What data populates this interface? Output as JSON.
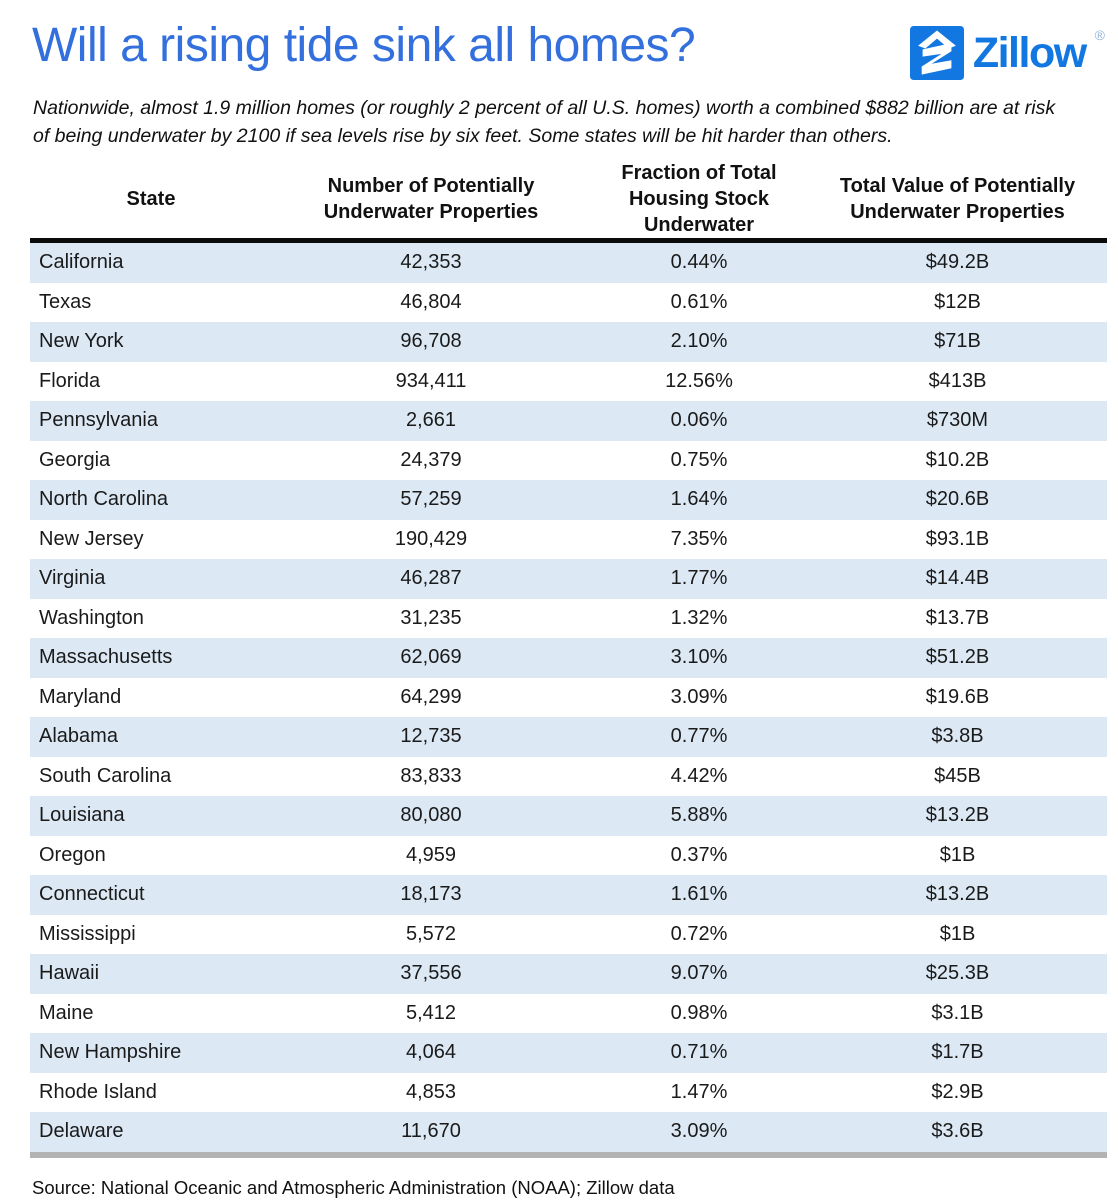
{
  "header": {
    "title": "Will a rising tide sink all homes?",
    "subtitle": "Nationwide, almost 1.9 million homes (or roughly 2 percent of all U.S. homes) worth a combined $882 billion are at risk of being underwater by 2100 if sea levels rise by six feet. Some states will be hit harder than others."
  },
  "logo": {
    "wordmark": "Zillow",
    "registered_mark": "®",
    "icon": "zillow-z-house-icon",
    "brand_color": "#1277e1"
  },
  "chart_data": {
    "type": "table",
    "title": "Will a rising tide sink all homes?",
    "columns": [
      "State",
      "Number of Potentially Underwater Properties",
      "Fraction of Total Housing Stock Underwater",
      "Total Value of Potentially Underwater Properties"
    ],
    "rows": [
      {
        "state": "California",
        "underwater_properties": "42,353",
        "fraction_underwater": "0.44%",
        "total_value": "$49.2B"
      },
      {
        "state": "Texas",
        "underwater_properties": "46,804",
        "fraction_underwater": "0.61%",
        "total_value": "$12B"
      },
      {
        "state": "New York",
        "underwater_properties": "96,708",
        "fraction_underwater": "2.10%",
        "total_value": "$71B"
      },
      {
        "state": "Florida",
        "underwater_properties": "934,411",
        "fraction_underwater": "12.56%",
        "total_value": "$413B"
      },
      {
        "state": "Pennsylvania",
        "underwater_properties": "2,661",
        "fraction_underwater": "0.06%",
        "total_value": "$730M"
      },
      {
        "state": "Georgia",
        "underwater_properties": "24,379",
        "fraction_underwater": "0.75%",
        "total_value": "$10.2B"
      },
      {
        "state": "North Carolina",
        "underwater_properties": "57,259",
        "fraction_underwater": "1.64%",
        "total_value": "$20.6B"
      },
      {
        "state": "New Jersey",
        "underwater_properties": "190,429",
        "fraction_underwater": "7.35%",
        "total_value": "$93.1B"
      },
      {
        "state": "Virginia",
        "underwater_properties": "46,287",
        "fraction_underwater": "1.77%",
        "total_value": "$14.4B"
      },
      {
        "state": "Washington",
        "underwater_properties": "31,235",
        "fraction_underwater": "1.32%",
        "total_value": "$13.7B"
      },
      {
        "state": "Massachusetts",
        "underwater_properties": "62,069",
        "fraction_underwater": "3.10%",
        "total_value": "$51.2B"
      },
      {
        "state": "Maryland",
        "underwater_properties": "64,299",
        "fraction_underwater": "3.09%",
        "total_value": "$19.6B"
      },
      {
        "state": "Alabama",
        "underwater_properties": "12,735",
        "fraction_underwater": "0.77%",
        "total_value": "$3.8B"
      },
      {
        "state": "South Carolina",
        "underwater_properties": "83,833",
        "fraction_underwater": "4.42%",
        "total_value": "$45B"
      },
      {
        "state": "Louisiana",
        "underwater_properties": "80,080",
        "fraction_underwater": "5.88%",
        "total_value": "$13.2B"
      },
      {
        "state": "Oregon",
        "underwater_properties": "4,959",
        "fraction_underwater": "0.37%",
        "total_value": "$1B"
      },
      {
        "state": "Connecticut",
        "underwater_properties": "18,173",
        "fraction_underwater": "1.61%",
        "total_value": "$13.2B"
      },
      {
        "state": "Mississippi",
        "underwater_properties": "5,572",
        "fraction_underwater": "0.72%",
        "total_value": "$1B"
      },
      {
        "state": "Hawaii",
        "underwater_properties": "37,556",
        "fraction_underwater": "9.07%",
        "total_value": "$25.3B"
      },
      {
        "state": "Maine",
        "underwater_properties": "5,412",
        "fraction_underwater": "0.98%",
        "total_value": "$3.1B"
      },
      {
        "state": "New Hampshire",
        "underwater_properties": "4,064",
        "fraction_underwater": "0.71%",
        "total_value": "$1.7B"
      },
      {
        "state": "Rhode Island",
        "underwater_properties": "4,853",
        "fraction_underwater": "1.47%",
        "total_value": "$2.9B"
      },
      {
        "state": "Delaware",
        "underwater_properties": "11,670",
        "fraction_underwater": "3.09%",
        "total_value": "$3.6B"
      }
    ],
    "layout": {
      "striped": true,
      "odd_rows_shaded": true,
      "header_rule_color": "#0a0a0a",
      "bottom_rule_color": "#b3b3b3",
      "stripe_color": "#dce9f5"
    }
  },
  "footer": {
    "source": "Source: National Oceanic and Atmospheric Administration (NOAA); Zillow data"
  },
  "colors": {
    "title_blue": "#3370dd",
    "zillow_blue": "#1277e1",
    "row_stripe": "#dce9f5"
  }
}
